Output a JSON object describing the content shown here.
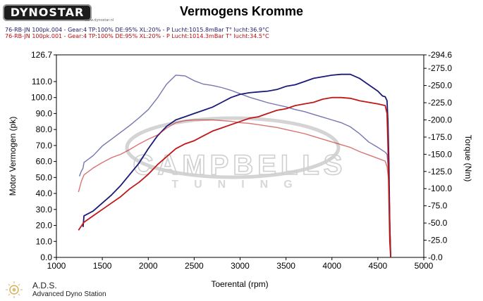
{
  "header": {
    "logo_text": "DYNOSTAR",
    "logo_sub": "www.dynostar.nl",
    "title": "Vermogens Kromme",
    "runs": [
      "76-RB-JN 100pk.004 - Gear:4 TP:100% DE:95% XL:20%   - P Lucht:1015.8mBar T° lucht:36.9°C",
      "76-RB-JN 100pk.001 - Gear:4 TP:100% DE:95% XL:20%   - P Lucht:1014.3mBar T° lucht:34.5°C"
    ]
  },
  "footer": {
    "name": "A.D.S.",
    "subtitle": "Advanced Dyno Station"
  },
  "watermark": {
    "line1": "CAMPBELLS",
    "line2": "TUNING"
  },
  "colors": {
    "run1": "#1a1a7a",
    "run2": "#c01818",
    "watermark": "#c9c9c9"
  },
  "chart_data": {
    "type": "line",
    "title": "Vermogens Kromme",
    "xlabel": "Toerental (rpm)",
    "ylabel": "Motor Vermogen (pk)",
    "y2label": "Torque (Nm)",
    "xlim": [
      1000,
      5000
    ],
    "ylim": [
      0,
      126.7
    ],
    "y2lim": [
      0,
      294.6
    ],
    "x_ticks": [
      1000,
      1500,
      2000,
      2500,
      3000,
      3500,
      4000,
      4500,
      5000
    ],
    "y_ticks": [
      "0.0",
      "10.0",
      "20.0",
      "30.0",
      "40.0",
      "50.0",
      "60.0",
      "70.0",
      "80.0",
      "90.0",
      "100.0",
      "110.0",
      "126.7"
    ],
    "y2_ticks": [
      "-0.0",
      "-25.0",
      "-50.0",
      "-75.0",
      "-100.0",
      "-125.0",
      "-150.0",
      "-175.0",
      "-200.0",
      "-225.0",
      "-250.0",
      "-275.0",
      "-294.6"
    ],
    "series": [
      {
        "name": "76-RB-JN 100pk.004",
        "kind": "power",
        "axis": "left",
        "color": "#1a1a7a",
        "x": [
          1290,
          1300,
          1400,
          1500,
          1600,
          1700,
          1800,
          1900,
          2000,
          2100,
          2200,
          2300,
          2400,
          2500,
          2600,
          2700,
          2800,
          2900,
          3000,
          3100,
          3200,
          3300,
          3400,
          3500,
          3600,
          3700,
          3800,
          3900,
          4000,
          4100,
          4200,
          4300,
          4400,
          4500,
          4550,
          4580,
          4600,
          4610,
          4620,
          4630,
          4640
        ],
        "y": [
          19,
          26,
          29,
          34,
          39,
          45,
          52,
          59,
          68,
          76,
          82,
          86,
          88,
          90,
          92,
          94,
          97,
          100,
          102,
          103,
          103.5,
          104,
          105,
          107,
          108,
          110,
          112,
          113,
          114,
          114.5,
          114.5,
          112,
          108,
          104,
          101,
          100.5,
          98,
          85,
          60,
          20,
          0
        ]
      },
      {
        "name": "76-RB-JN 100pk.004",
        "kind": "torque",
        "axis": "right",
        "color": "#1a1a7a",
        "x": [
          1250,
          1270,
          1290,
          1300,
          1400,
          1500,
          1600,
          1700,
          1800,
          1900,
          2000,
          2100,
          2200,
          2300,
          2400,
          2500,
          2600,
          2700,
          2800,
          2900,
          3000,
          3100,
          3200,
          3300,
          3400,
          3500,
          3600,
          3700,
          3800,
          3900,
          4000,
          4100,
          4200,
          4300,
          4400,
          4500,
          4580,
          4600,
          4620,
          4640
        ],
        "y": [
          118,
          125,
          130,
          138,
          148,
          162,
          172,
          182,
          192,
          203,
          215,
          232,
          252,
          265,
          264,
          257,
          252,
          250,
          247,
          243,
          238,
          233,
          229,
          225,
          222,
          219,
          215,
          212,
          208,
          204,
          200,
          196,
          190,
          180,
          168,
          160,
          153,
          150,
          120,
          0
        ]
      },
      {
        "name": "76-RB-JN 100pk.001",
        "kind": "power",
        "axis": "left",
        "color": "#c01818",
        "x": [
          1240,
          1300,
          1400,
          1500,
          1600,
          1700,
          1800,
          1900,
          2000,
          2100,
          2200,
          2300,
          2400,
          2500,
          2600,
          2700,
          2800,
          2900,
          3000,
          3100,
          3200,
          3300,
          3400,
          3500,
          3600,
          3700,
          3800,
          3900,
          4000,
          4100,
          4200,
          4300,
          4400,
          4500,
          4580,
          4600,
          4610,
          4620,
          4630,
          4640
        ],
        "y": [
          17,
          22,
          26,
          30,
          34,
          38,
          43,
          47,
          52,
          58,
          63,
          68,
          71,
          73,
          76,
          79,
          81,
          83,
          85,
          87,
          88,
          90,
          92,
          93,
          95,
          96,
          97,
          99,
          100,
          100,
          99.5,
          98,
          97,
          96,
          95,
          90,
          70,
          40,
          10,
          0
        ]
      },
      {
        "name": "76-RB-JN 100pk.001",
        "kind": "torque",
        "axis": "right",
        "color": "#c01818",
        "x": [
          1240,
          1270,
          1300,
          1400,
          1500,
          1600,
          1700,
          1800,
          1900,
          2000,
          2100,
          2200,
          2300,
          2400,
          2500,
          2600,
          2700,
          2800,
          2900,
          3000,
          3100,
          3200,
          3300,
          3400,
          3500,
          3600,
          3700,
          3800,
          3900,
          4000,
          4100,
          4200,
          4300,
          4400,
          4500,
          4580,
          4600,
          4620,
          4640
        ],
        "y": [
          95,
          110,
          120,
          130,
          138,
          145,
          150,
          157,
          165,
          172,
          178,
          188,
          196,
          199,
          200,
          200,
          200,
          199,
          198,
          196,
          195,
          193,
          191,
          189,
          186,
          183,
          180,
          176,
          172,
          168,
          164,
          160,
          154,
          149,
          144,
          140,
          132,
          110,
          0
        ]
      }
    ]
  }
}
